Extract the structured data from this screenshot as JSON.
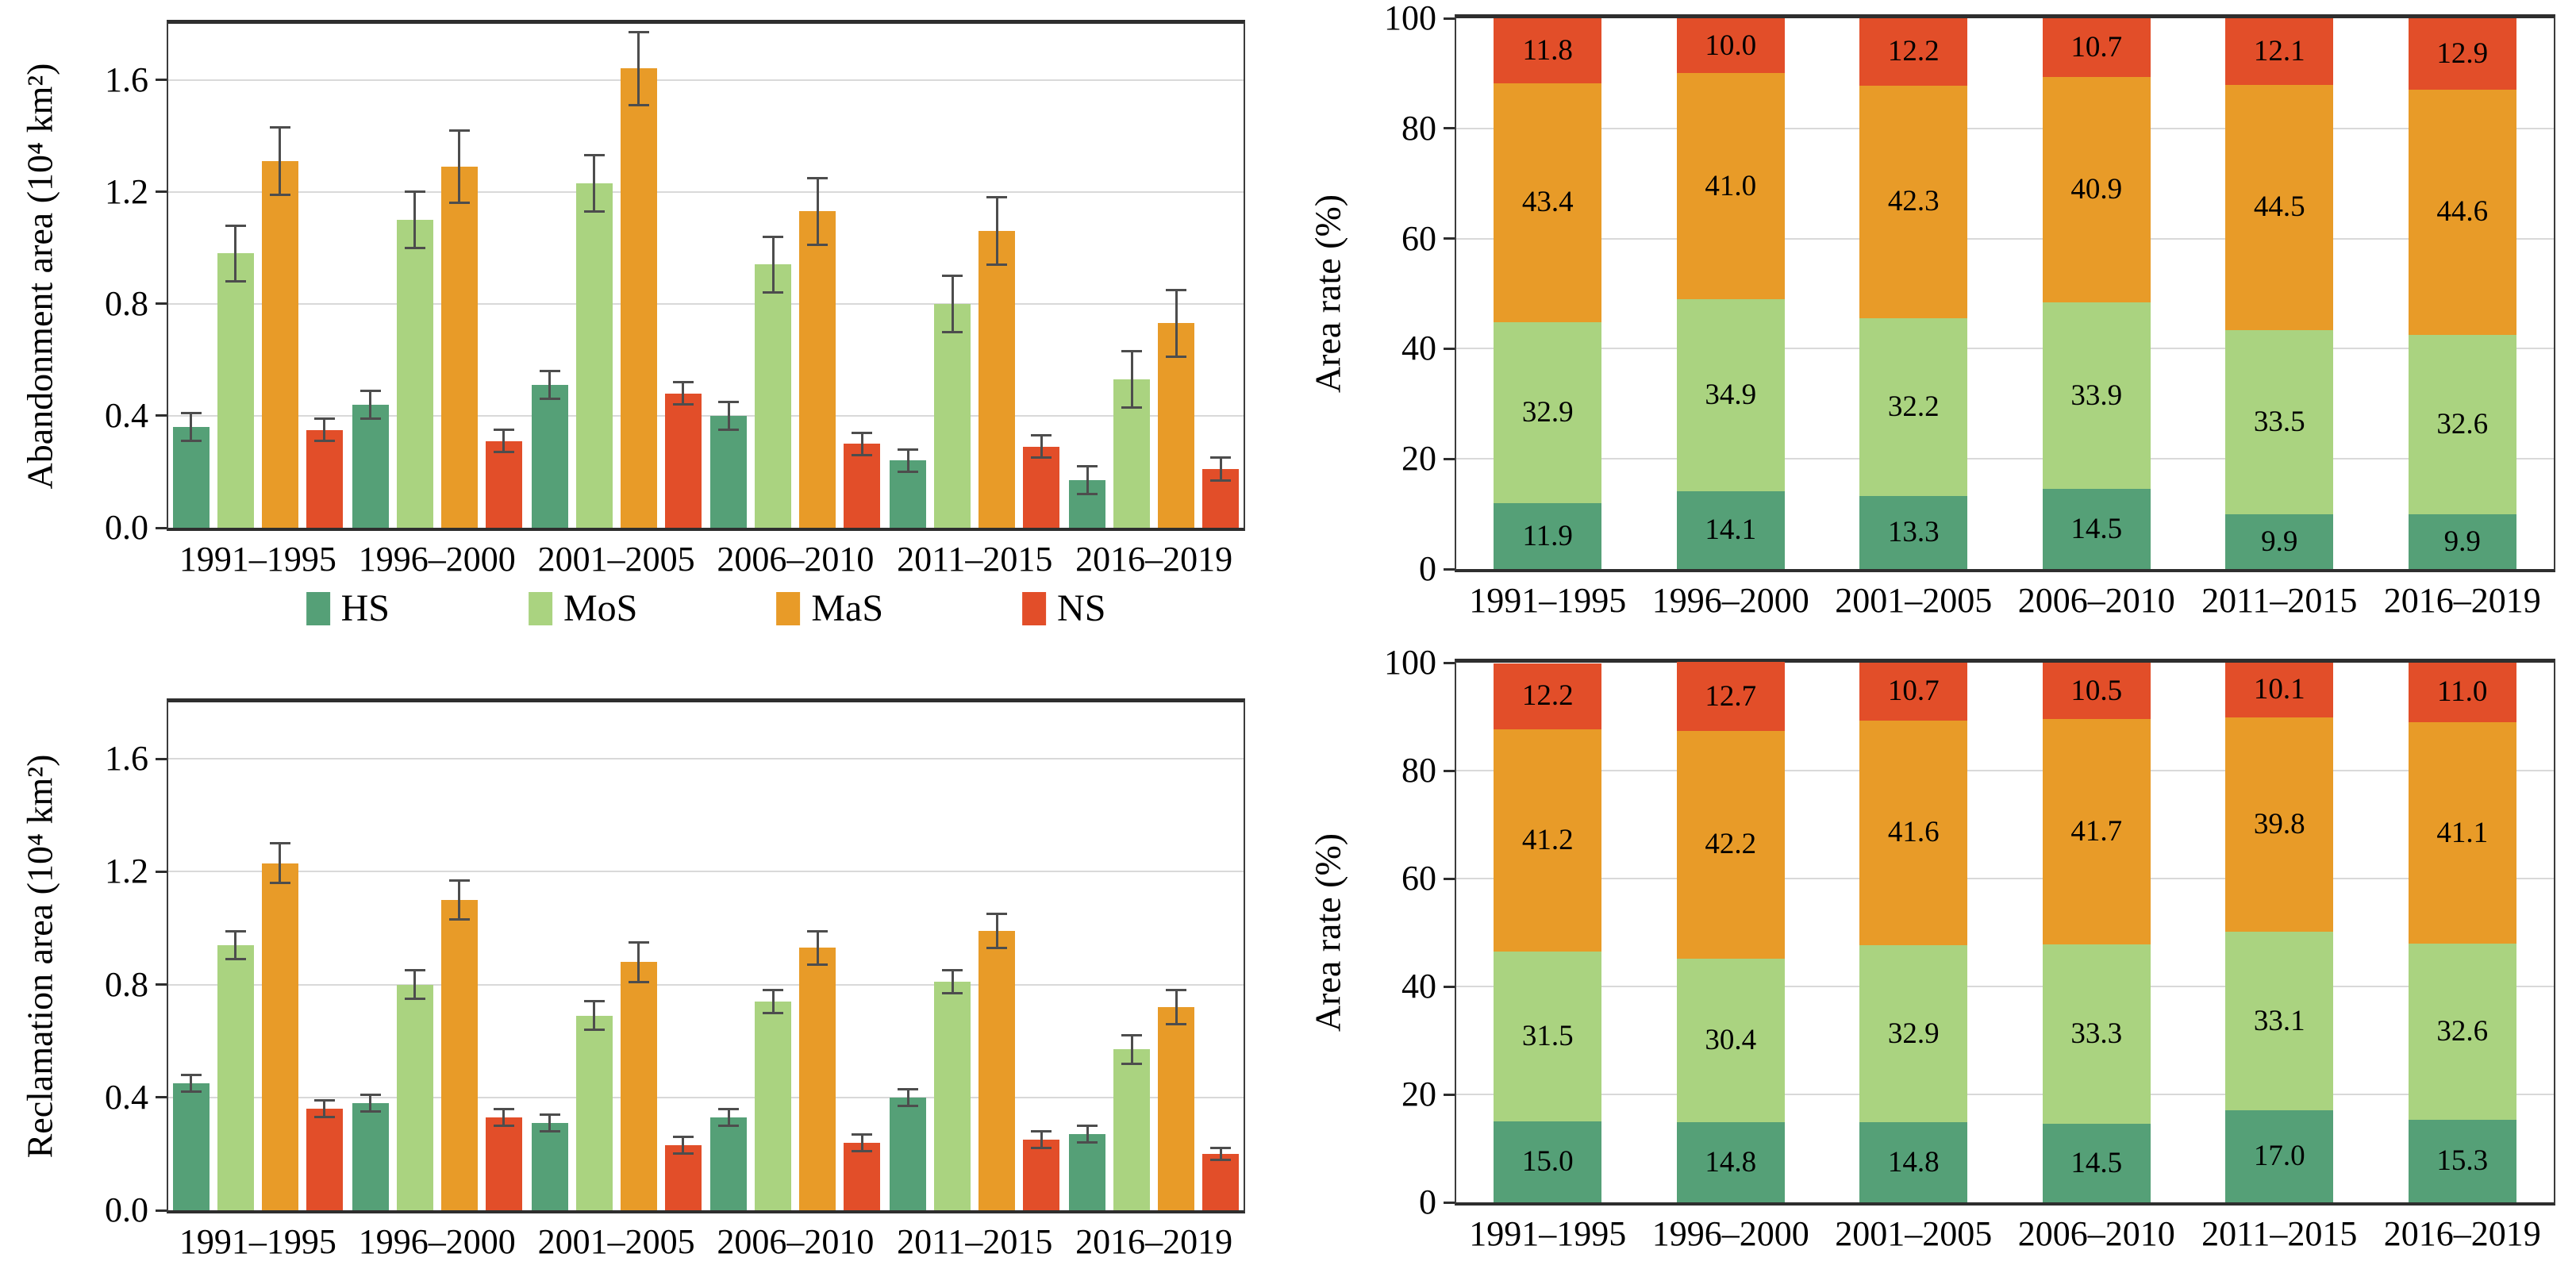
{
  "page": {
    "background": "#ffffff"
  },
  "colors": {
    "HS": "#55a077",
    "MoS": "#aad380",
    "MaS": "#e89b28",
    "NS": "#e24e29",
    "error_bar": "#4d4d4d",
    "grid": "#d9d9d9",
    "frame": "#3c3c3c",
    "text": "#000000"
  },
  "legend": {
    "position": "below-top-left-chart",
    "items": [
      {
        "key": "HS",
        "label": "HS"
      },
      {
        "key": "MoS",
        "label": "MoS"
      },
      {
        "key": "MaS",
        "label": "MaS"
      },
      {
        "key": "NS",
        "label": "NS"
      }
    ]
  },
  "chart_data": [
    {
      "id": "abandonment-area",
      "type": "bar",
      "title": "",
      "ylabel": "Abandonment area (10⁴ km²)",
      "xlabel": "",
      "categories": [
        "1991–1995",
        "1996–2000",
        "2001–2005",
        "2006–2010",
        "2011–2015",
        "2016–2019"
      ],
      "ylim": [
        0,
        1.8
      ],
      "yticks": [
        0,
        0.4,
        0.8,
        1.2,
        1.6
      ],
      "tick_decimals": 1,
      "grid": true,
      "error_bars": true,
      "legend_position": "below",
      "series": [
        {
          "name": "HS",
          "values": [
            0.36,
            0.44,
            0.51,
            0.4,
            0.24,
            0.17
          ],
          "errors": [
            0.05,
            0.05,
            0.05,
            0.05,
            0.04,
            0.05
          ]
        },
        {
          "name": "MoS",
          "values": [
            0.98,
            1.1,
            1.23,
            0.94,
            0.8,
            0.53
          ],
          "errors": [
            0.1,
            0.1,
            0.1,
            0.1,
            0.1,
            0.1
          ]
        },
        {
          "name": "MaS",
          "values": [
            1.31,
            1.29,
            1.64,
            1.13,
            1.06,
            0.73
          ],
          "errors": [
            0.12,
            0.13,
            0.13,
            0.12,
            0.12,
            0.12
          ]
        },
        {
          "name": "NS",
          "values": [
            0.35,
            0.31,
            0.48,
            0.3,
            0.29,
            0.21
          ],
          "errors": [
            0.04,
            0.04,
            0.04,
            0.04,
            0.04,
            0.04
          ]
        }
      ]
    },
    {
      "id": "abandonment-area-rate",
      "type": "stacked-bar",
      "title": "",
      "ylabel": "Area rate (%)",
      "xlabel": "",
      "categories": [
        "1991–1995",
        "1996–2000",
        "2001–2005",
        "2006–2010",
        "2011–2015",
        "2016–2019"
      ],
      "ylim": [
        0,
        100
      ],
      "yticks": [
        0,
        20,
        40,
        60,
        80,
        100
      ],
      "tick_decimals": 0,
      "grid": true,
      "value_labels": true,
      "series": [
        {
          "name": "HS",
          "values": [
            11.9,
            14.1,
            13.3,
            14.5,
            9.9,
            9.9
          ]
        },
        {
          "name": "MoS",
          "values": [
            32.9,
            34.9,
            32.2,
            33.9,
            33.5,
            32.6
          ]
        },
        {
          "name": "MaS",
          "values": [
            43.4,
            41.0,
            42.3,
            40.9,
            44.5,
            44.6
          ]
        },
        {
          "name": "NS",
          "values": [
            11.8,
            10.0,
            12.2,
            10.7,
            12.1,
            12.9
          ]
        }
      ]
    },
    {
      "id": "reclamation-area",
      "type": "bar",
      "title": "",
      "ylabel": "Reclamation area (10⁴ km²)",
      "xlabel": "",
      "categories": [
        "1991–1995",
        "1996–2000",
        "2001–2005",
        "2006–2010",
        "2011–2015",
        "2016–2019"
      ],
      "ylim": [
        0,
        1.8
      ],
      "yticks": [
        0,
        0.4,
        0.8,
        1.2,
        1.6
      ],
      "tick_decimals": 1,
      "grid": true,
      "error_bars": true,
      "legend_position": "none",
      "series": [
        {
          "name": "HS",
          "values": [
            0.45,
            0.38,
            0.31,
            0.33,
            0.4,
            0.27
          ],
          "errors": [
            0.03,
            0.03,
            0.03,
            0.03,
            0.03,
            0.03
          ]
        },
        {
          "name": "MoS",
          "values": [
            0.94,
            0.8,
            0.69,
            0.74,
            0.81,
            0.57
          ],
          "errors": [
            0.05,
            0.05,
            0.05,
            0.04,
            0.04,
            0.05
          ]
        },
        {
          "name": "MaS",
          "values": [
            1.23,
            1.1,
            0.88,
            0.93,
            0.99,
            0.72
          ],
          "errors": [
            0.07,
            0.07,
            0.07,
            0.06,
            0.06,
            0.06
          ]
        },
        {
          "name": "NS",
          "values": [
            0.36,
            0.33,
            0.23,
            0.24,
            0.25,
            0.2
          ],
          "errors": [
            0.03,
            0.03,
            0.03,
            0.03,
            0.03,
            0.02
          ]
        }
      ]
    },
    {
      "id": "reclamation-area-rate",
      "type": "stacked-bar",
      "title": "",
      "ylabel": "Area rate (%)",
      "xlabel": "",
      "categories": [
        "1991–1995",
        "1996–2000",
        "2001–2005",
        "2006–2010",
        "2011–2015",
        "2016–2019"
      ],
      "ylim": [
        0,
        100
      ],
      "yticks": [
        0,
        20,
        40,
        60,
        80,
        100
      ],
      "tick_decimals": 0,
      "grid": true,
      "value_labels": true,
      "series": [
        {
          "name": "HS",
          "values": [
            15.0,
            14.8,
            14.8,
            14.5,
            17.0,
            15.3
          ]
        },
        {
          "name": "MoS",
          "values": [
            31.5,
            30.4,
            32.9,
            33.3,
            33.1,
            32.6
          ]
        },
        {
          "name": "MaS",
          "values": [
            41.2,
            42.2,
            41.6,
            41.7,
            39.8,
            41.1
          ]
        },
        {
          "name": "NS",
          "values": [
            12.2,
            12.7,
            10.7,
            10.5,
            10.1,
            11.0
          ]
        }
      ]
    }
  ]
}
